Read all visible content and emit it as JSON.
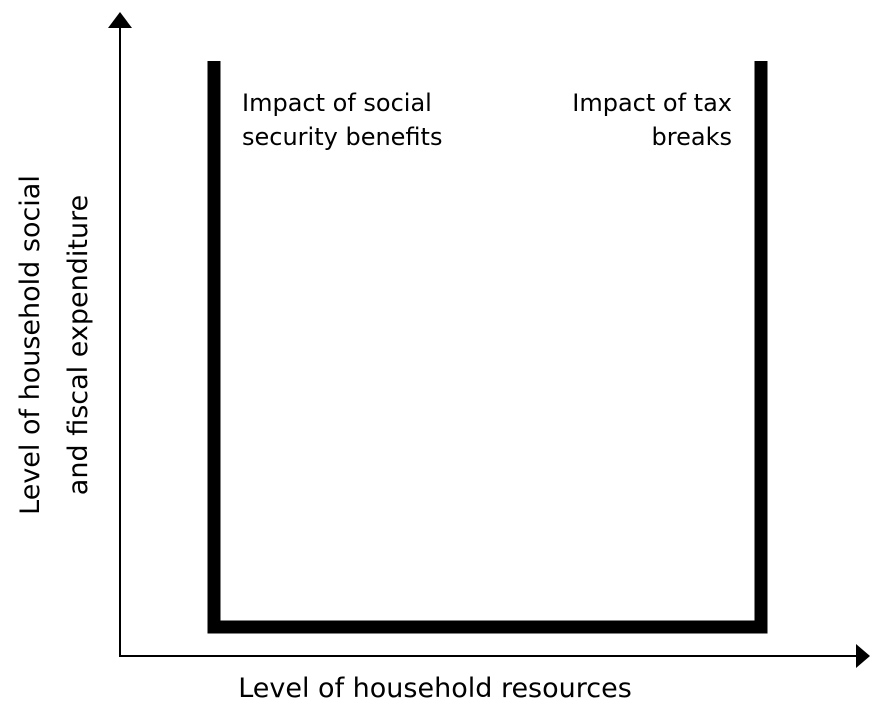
{
  "diagram": {
    "left_region_label": {
      "line1": "Impact of social",
      "line2": "security benefits"
    },
    "right_region_label": {
      "line1": "Impact of tax",
      "line2": "breaks"
    },
    "x_axis_label": "Level of household resources",
    "y_axis_label": {
      "line1": "Level of household social",
      "line2": "and fiscal expenditure"
    },
    "colors": {
      "stroke": "#000000",
      "background": "#ffffff"
    }
  }
}
